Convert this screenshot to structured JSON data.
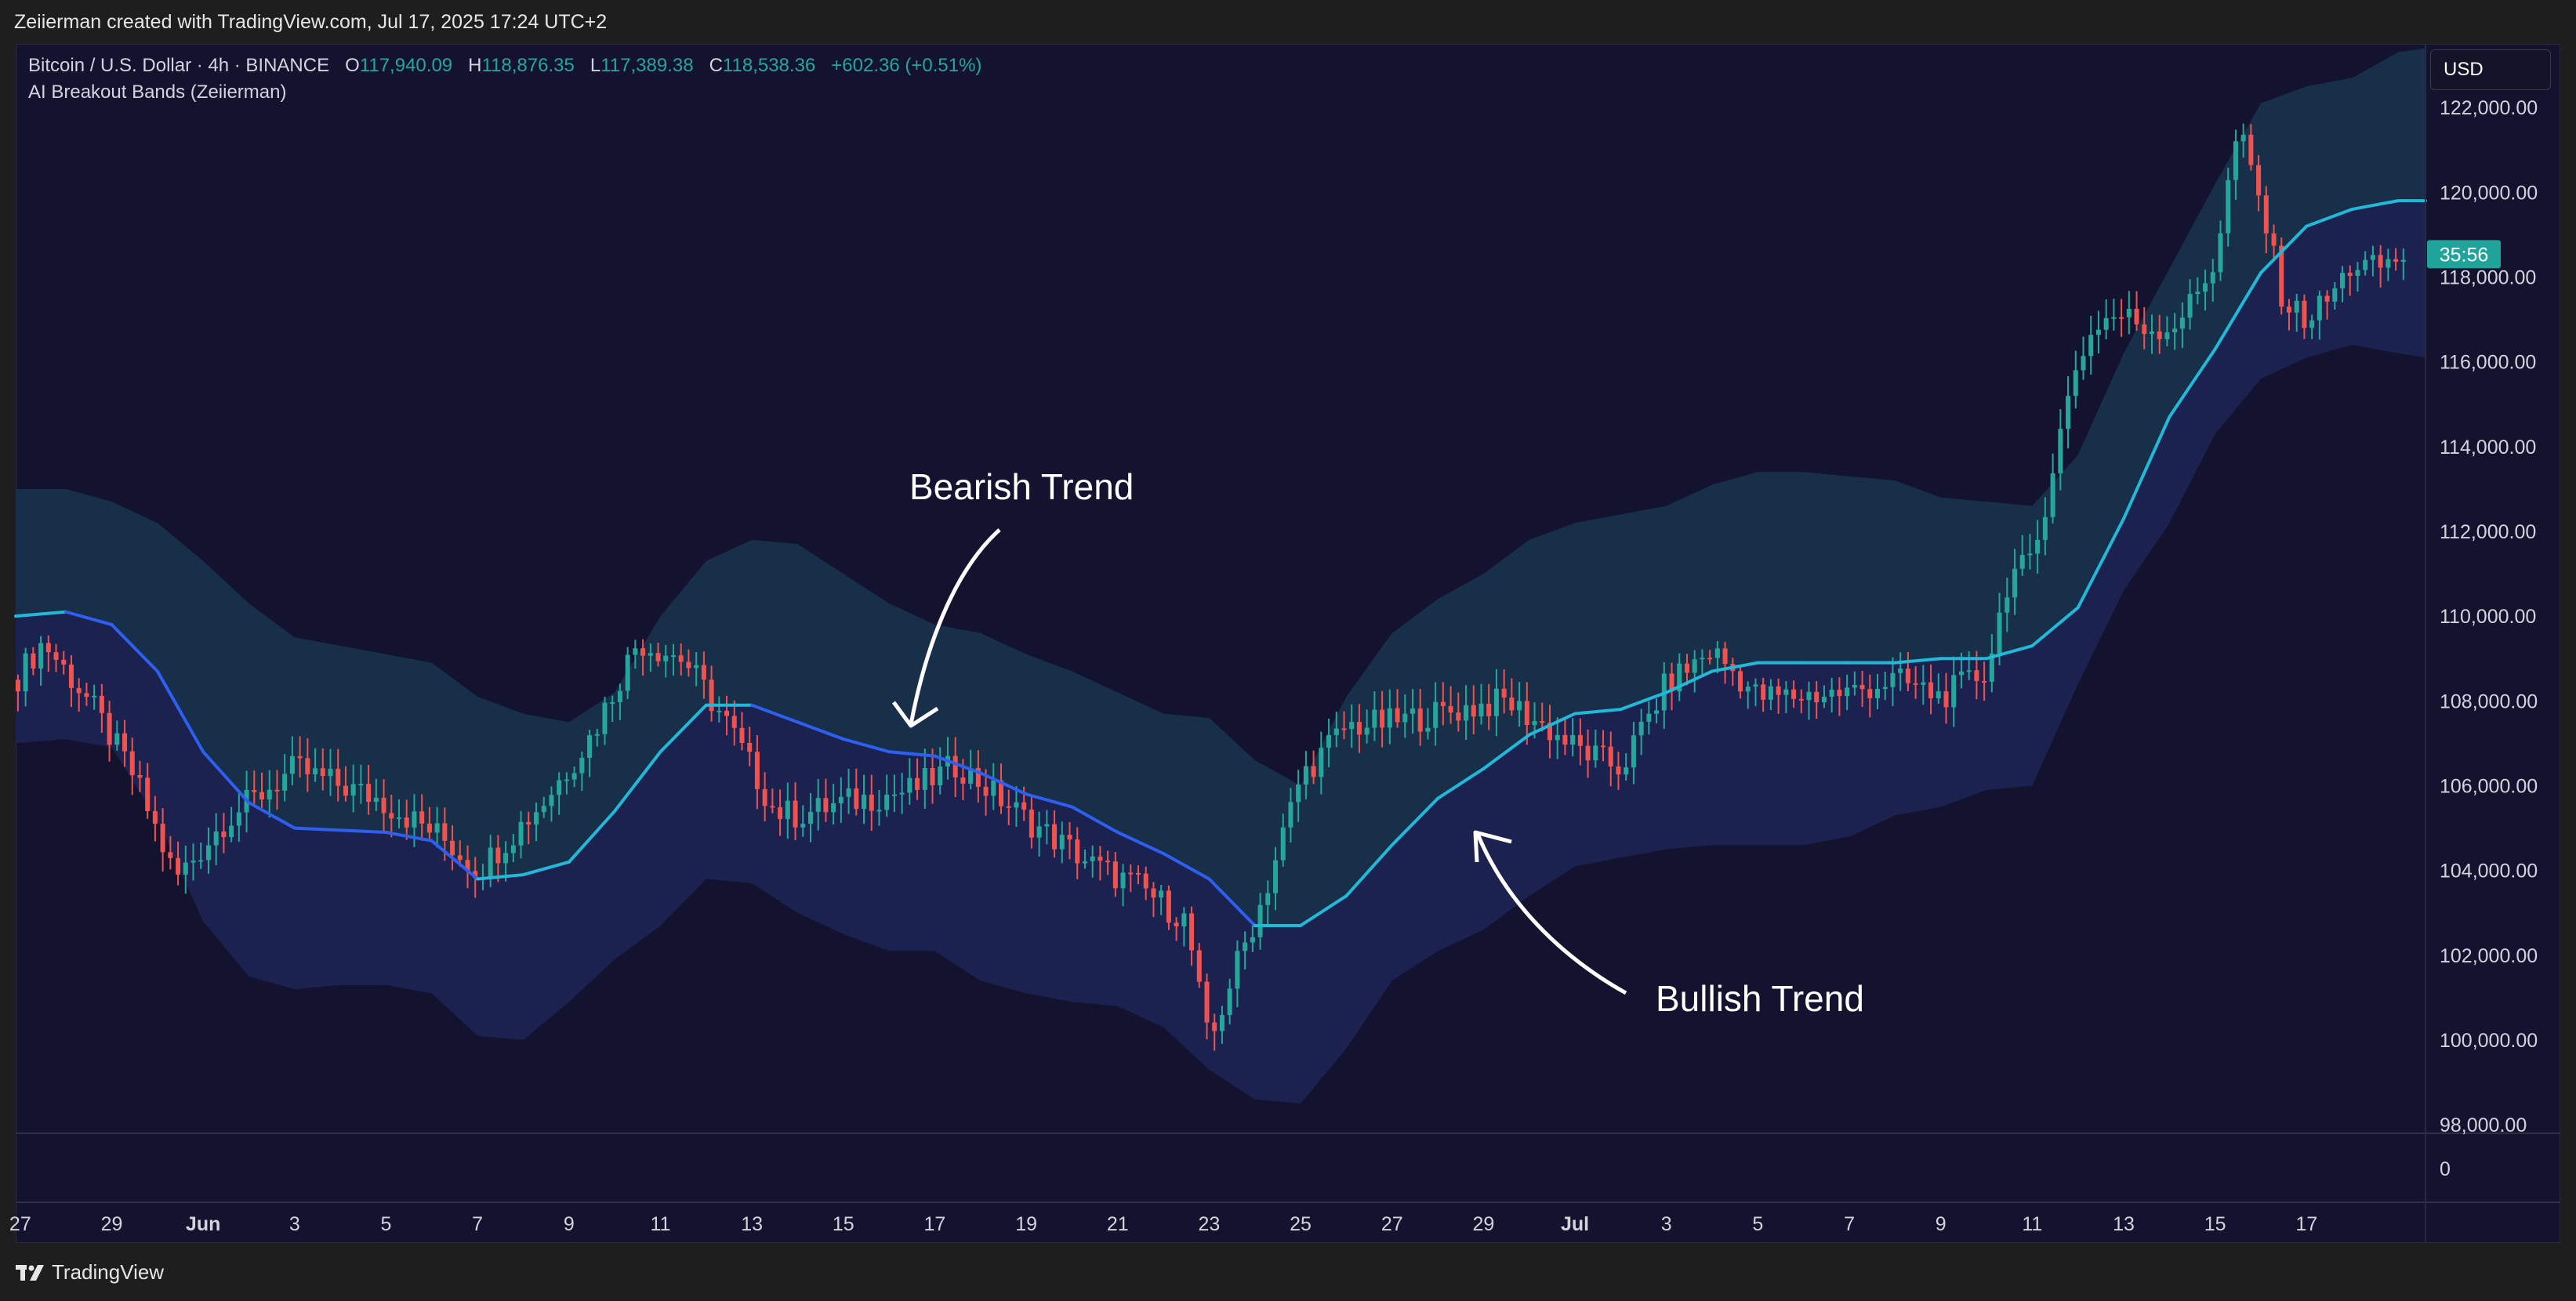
{
  "header": {
    "credit": "Zeiierman created with TradingView.com, Jul 17, 2025 17:24 UTC+2"
  },
  "legend": {
    "symbol": "Bitcoin / U.S. Dollar · 4h · BINANCE",
    "o_label": "O",
    "o_value": "117,940.09",
    "h_label": "H",
    "h_value": "118,876.35",
    "l_label": "L",
    "l_value": "117,389.38",
    "c_label": "C",
    "c_value": "118,538.36",
    "change": "+602.36 (+0.51%)",
    "indicator": "AI Breakout Bands (Zeiierman)"
  },
  "currency_button": "USD",
  "footer": {
    "brand": "TradingView"
  },
  "colors": {
    "background": "#131330",
    "candle_up": "#26a69a",
    "candle_down": "#ef5350",
    "mid_line_bull": "#22b8d8",
    "mid_line_bear": "#2f5ff0",
    "band_upper": "#17304a",
    "band_lower": "#1c2352",
    "countdown_badge": "#1fa39a"
  },
  "chart_data": {
    "type": "candlestick",
    "title": "Bitcoin / U.S. Dollar · 4h · BINANCE",
    "y_ticks": [
      "122,000.00",
      "120,000.00",
      "118,000.00",
      "116,000.00",
      "114,000.00",
      "112,000.00",
      "110,000.00",
      "108,000.00",
      "106,000.00",
      "104,000.00",
      "102,000.00",
      "100,000.00",
      "98,000.00"
    ],
    "y_tick_values": [
      122000,
      120000,
      118000,
      116000,
      114000,
      112000,
      110000,
      108000,
      106000,
      104000,
      102000,
      100000,
      98000
    ],
    "ylim": [
      97800,
      123500
    ],
    "x_ticks": [
      "27",
      "29",
      "Jun",
      "3",
      "5",
      "7",
      "9",
      "11",
      "13",
      "15",
      "17",
      "19",
      "21",
      "23",
      "25",
      "27",
      "29",
      "Jul",
      "3",
      "5",
      "7",
      "9",
      "11",
      "13",
      "15",
      "17"
    ],
    "x_tick_days": [
      -4,
      -2,
      0,
      2,
      4,
      6,
      8,
      10,
      12,
      14,
      16,
      18,
      20,
      22,
      24,
      26,
      28,
      30,
      32,
      34,
      36,
      38,
      40,
      42,
      44,
      46
    ],
    "x_range_days": [
      -4.1,
      48.6
    ],
    "last_price_countdown": "35:56",
    "last_price": 118538.36,
    "sub_pane_label": "0",
    "annotations": [
      {
        "text": "Bearish Trend",
        "arrow": "down"
      },
      {
        "text": "Bullish Trend",
        "arrow": "up-left"
      }
    ],
    "keypoints_days": [
      -4.1,
      -3.5,
      -2.5,
      -1.5,
      -0.6,
      0.5,
      2,
      3.8,
      5.2,
      6,
      7.5,
      8.5,
      9.5,
      10.5,
      11.5,
      12.5,
      13,
      14,
      15.5,
      16.5,
      18,
      19.5,
      20.5,
      21.5,
      22,
      22.5,
      23.2,
      24,
      25,
      26,
      27,
      28.5,
      30,
      31,
      32,
      33,
      34,
      34.5,
      36,
      37,
      38,
      39,
      39.5,
      40,
      40.5,
      41,
      41.5,
      42,
      42.5,
      43,
      43.5,
      44,
      44.5,
      45,
      45.5,
      46,
      46.5,
      47,
      47.5,
      48.2
    ],
    "keypoints_close": [
      108500,
      109400,
      108000,
      106200,
      103800,
      105200,
      106400,
      105700,
      104800,
      104000,
      105700,
      107200,
      109400,
      109000,
      107400,
      105400,
      105300,
      105600,
      105900,
      106500,
      105200,
      104100,
      103600,
      102800,
      99800,
      101500,
      103400,
      106200,
      107400,
      107500,
      107700,
      108000,
      106900,
      106400,
      108400,
      109200,
      108100,
      108100,
      108200,
      108500,
      108100,
      108700,
      111000,
      111200,
      113800,
      116100,
      117000,
      117100,
      116800,
      116800,
      117400,
      118400,
      121500,
      119700,
      117400,
      117000,
      117500,
      118300,
      118200,
      118538
    ],
    "mid_band": [
      [
        -4.1,
        110000
      ],
      [
        -3,
        110100
      ],
      [
        -2,
        109800
      ],
      [
        -1,
        108700
      ],
      [
        0,
        106800
      ],
      [
        1,
        105600
      ],
      [
        2,
        105000
      ],
      [
        4,
        104900
      ],
      [
        5,
        104700
      ],
      [
        6,
        103800
      ],
      [
        7,
        103900
      ],
      [
        8,
        104200
      ],
      [
        9,
        105400
      ],
      [
        10,
        106800
      ],
      [
        11,
        107900
      ],
      [
        12,
        107900
      ],
      [
        13,
        107500
      ],
      [
        14,
        107100
      ],
      [
        15,
        106800
      ],
      [
        16,
        106700
      ],
      [
        17,
        106300
      ],
      [
        18,
        105800
      ],
      [
        19,
        105500
      ],
      [
        20,
        104900
      ],
      [
        21,
        104400
      ],
      [
        22,
        103800
      ],
      [
        23,
        102700
      ],
      [
        24,
        102700
      ],
      [
        25,
        103400
      ],
      [
        26,
        104600
      ],
      [
        27,
        105700
      ],
      [
        28,
        106400
      ],
      [
        29,
        107200
      ],
      [
        30,
        107700
      ],
      [
        31,
        107800
      ],
      [
        32,
        108200
      ],
      [
        33,
        108700
      ],
      [
        34,
        108900
      ],
      [
        35,
        108900
      ],
      [
        36,
        108900
      ],
      [
        37,
        108900
      ],
      [
        38,
        109000
      ],
      [
        39,
        109000
      ],
      [
        40,
        109300
      ],
      [
        41,
        110200
      ],
      [
        42,
        112300
      ],
      [
        43,
        114700
      ],
      [
        44,
        116300
      ],
      [
        45,
        118100
      ],
      [
        46,
        119200
      ],
      [
        47,
        119600
      ],
      [
        48,
        119800
      ],
      [
        48.6,
        119800
      ]
    ],
    "upper_band": [
      [
        -4.1,
        113000
      ],
      [
        -3,
        113000
      ],
      [
        -2,
        112700
      ],
      [
        -1,
        112200
      ],
      [
        0,
        111300
      ],
      [
        1,
        110300
      ],
      [
        2,
        109500
      ],
      [
        3,
        109300
      ],
      [
        4,
        109100
      ],
      [
        5,
        108900
      ],
      [
        6,
        108100
      ],
      [
        7,
        107700
      ],
      [
        8,
        107500
      ],
      [
        9,
        108200
      ],
      [
        10,
        110000
      ],
      [
        11,
        111300
      ],
      [
        12,
        111800
      ],
      [
        13,
        111700
      ],
      [
        14,
        111000
      ],
      [
        15,
        110300
      ],
      [
        16,
        109800
      ],
      [
        17,
        109600
      ],
      [
        18,
        109100
      ],
      [
        19,
        108700
      ],
      [
        20,
        108200
      ],
      [
        21,
        107700
      ],
      [
        22,
        107600
      ],
      [
        23,
        106600
      ],
      [
        24,
        106000
      ],
      [
        25,
        108100
      ],
      [
        26,
        109600
      ],
      [
        27,
        110400
      ],
      [
        28,
        111000
      ],
      [
        29,
        111800
      ],
      [
        30,
        112200
      ],
      [
        31,
        112400
      ],
      [
        32,
        112600
      ],
      [
        33,
        113100
      ],
      [
        34,
        113400
      ],
      [
        35,
        113400
      ],
      [
        36,
        113300
      ],
      [
        37,
        113200
      ],
      [
        38,
        112800
      ],
      [
        39,
        112700
      ],
      [
        40,
        112600
      ],
      [
        41,
        113800
      ],
      [
        42,
        116200
      ],
      [
        43,
        118200
      ],
      [
        44,
        120200
      ],
      [
        45,
        122100
      ],
      [
        46,
        122500
      ],
      [
        47,
        122700
      ],
      [
        48,
        123300
      ],
      [
        48.6,
        123400
      ]
    ],
    "lower_band": [
      [
        -4.1,
        107000
      ],
      [
        -3,
        107100
      ],
      [
        -2,
        106900
      ],
      [
        -1,
        105200
      ],
      [
        0,
        102800
      ],
      [
        1,
        101500
      ],
      [
        2,
        101200
      ],
      [
        3,
        101300
      ],
      [
        4,
        101300
      ],
      [
        5,
        101100
      ],
      [
        6,
        100100
      ],
      [
        7,
        100000
      ],
      [
        8,
        100900
      ],
      [
        9,
        101900
      ],
      [
        10,
        102700
      ],
      [
        11,
        103800
      ],
      [
        12,
        103700
      ],
      [
        13,
        103000
      ],
      [
        14,
        102500
      ],
      [
        15,
        102100
      ],
      [
        16,
        102100
      ],
      [
        17,
        101400
      ],
      [
        18,
        101100
      ],
      [
        19,
        100900
      ],
      [
        20,
        100800
      ],
      [
        21,
        100300
      ],
      [
        22,
        99300
      ],
      [
        23,
        98600
      ],
      [
        24,
        98500
      ],
      [
        25,
        99800
      ],
      [
        26,
        101400
      ],
      [
        27,
        102100
      ],
      [
        28,
        102600
      ],
      [
        29,
        103400
      ],
      [
        30,
        104100
      ],
      [
        31,
        104300
      ],
      [
        32,
        104500
      ],
      [
        33,
        104600
      ],
      [
        34,
        104600
      ],
      [
        35,
        104600
      ],
      [
        36,
        104800
      ],
      [
        37,
        105300
      ],
      [
        38,
        105500
      ],
      [
        39,
        105900
      ],
      [
        40,
        106000
      ],
      [
        41,
        108400
      ],
      [
        42,
        110600
      ],
      [
        43,
        112200
      ],
      [
        44,
        114300
      ],
      [
        45,
        115600
      ],
      [
        46,
        116100
      ],
      [
        47,
        116400
      ],
      [
        48,
        116200
      ],
      [
        48.6,
        116100
      ]
    ]
  }
}
